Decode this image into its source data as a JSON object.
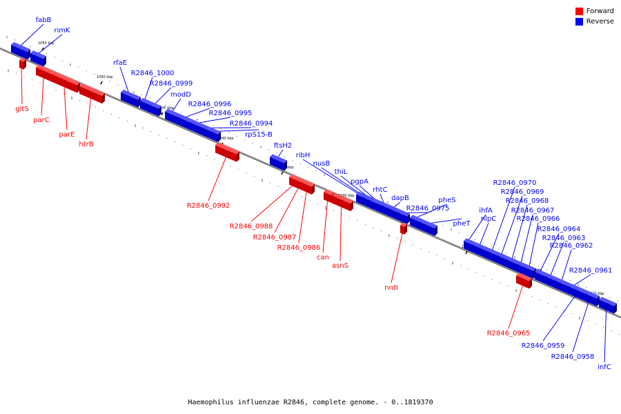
{
  "legend": {
    "forward_label": "Forward",
    "reverse_label": "Reverse",
    "forward_color": "#ff0000",
    "reverse_color": "#0000ff"
  },
  "caption": "Haemophilus influenzae R2846, complete genome. - 0..1819370",
  "kbp_labels": [
    "1055 kbp",
    "1050 kbp",
    "1045 kbp",
    "1040 kbp",
    "1035 kbp",
    "1030 kbp",
    "1025 kbp",
    "1020 kbp",
    "1015 kbp",
    "1010 kbp"
  ],
  "genes": [
    {
      "label": "fabB",
      "strand": "reverse"
    },
    {
      "label": "rimK",
      "strand": "reverse"
    },
    {
      "label": "gltS",
      "strand": "forward"
    },
    {
      "label": "parC",
      "strand": "forward"
    },
    {
      "label": "parE",
      "strand": "forward"
    },
    {
      "label": "htrB",
      "strand": "forward"
    },
    {
      "label": "rfaE",
      "strand": "reverse"
    },
    {
      "label": "R2846_1000",
      "strand": "reverse"
    },
    {
      "label": "R2846_0999",
      "strand": "reverse"
    },
    {
      "label": "modD",
      "strand": "reverse"
    },
    {
      "label": "R2846_0996",
      "strand": "reverse"
    },
    {
      "label": "R2846_0995",
      "strand": "reverse"
    },
    {
      "label": "R2846_0994",
      "strand": "reverse"
    },
    {
      "label": "rpS15-B",
      "strand": "reverse"
    },
    {
      "label": "R2846_0992",
      "strand": "forward"
    },
    {
      "label": "ftsH2",
      "strand": "reverse"
    },
    {
      "label": "R2846_0988",
      "strand": "forward"
    },
    {
      "label": "R2846_0987",
      "strand": "forward"
    },
    {
      "label": "R2846_0986",
      "strand": "forward"
    },
    {
      "label": "can",
      "strand": "forward"
    },
    {
      "label": "asnS",
      "strand": "forward"
    },
    {
      "label": "ribH",
      "strand": "reverse"
    },
    {
      "label": "nusB",
      "strand": "reverse"
    },
    {
      "label": "thiL",
      "strand": "reverse"
    },
    {
      "label": "pgpA",
      "strand": "reverse"
    },
    {
      "label": "rhtC",
      "strand": "reverse"
    },
    {
      "label": "dapB",
      "strand": "reverse"
    },
    {
      "label": "R2846_0975",
      "strand": "reverse"
    },
    {
      "label": "pheS",
      "strand": "reverse"
    },
    {
      "label": "pheT",
      "strand": "reverse"
    },
    {
      "label": "nrdI",
      "strand": "forward"
    },
    {
      "label": "ihfA",
      "strand": "reverse"
    },
    {
      "label": "nlpC",
      "strand": "reverse"
    },
    {
      "label": "R2846_0970",
      "strand": "reverse"
    },
    {
      "label": "R2846_0969",
      "strand": "reverse"
    },
    {
      "label": "R2846_0968",
      "strand": "reverse"
    },
    {
      "label": "R2846_0967",
      "strand": "reverse"
    },
    {
      "label": "R2846_0966",
      "strand": "reverse"
    },
    {
      "label": "R2846_0964",
      "strand": "reverse"
    },
    {
      "label": "R2846_0963",
      "strand": "reverse"
    },
    {
      "label": "R2846_0962",
      "strand": "reverse"
    },
    {
      "label": "R2846_0961",
      "strand": "reverse"
    },
    {
      "label": "R2846_0965",
      "strand": "forward"
    },
    {
      "label": "R2846_0959",
      "strand": "reverse"
    },
    {
      "label": "R2846_0958",
      "strand": "reverse"
    },
    {
      "label": "infC",
      "strand": "reverse"
    }
  ]
}
